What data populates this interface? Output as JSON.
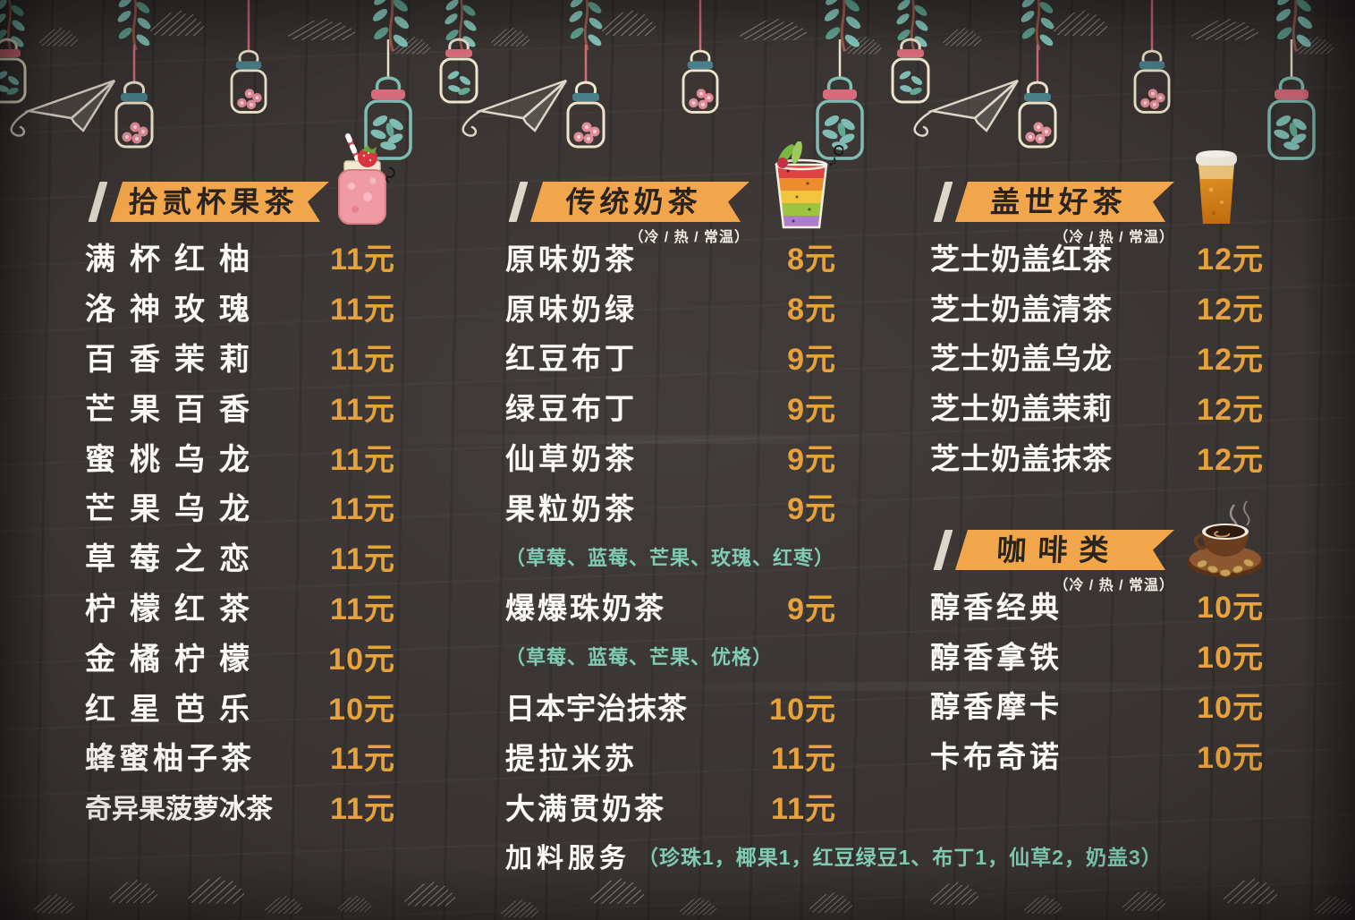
{
  "poster": {
    "kind": "milk-tea-shop-chalkboard-menu"
  },
  "colors": {
    "background": "#373230",
    "banner_orange": "#f2a64b",
    "banner_text": "#2a2420",
    "item_text": "#fbfaf6",
    "price_orange": "#e7a23b",
    "note_teal": "#80cbb3",
    "chalk_white": "#ddd6c9",
    "leaf_teal": "#86c9bd",
    "jar_band_teal": "#49808a",
    "string_pink": "#d76b7a",
    "cloud_gray": "#97928c"
  },
  "decor_icons": [
    "leaf-branch-icon",
    "hanging-jar-berries-icon",
    "hanging-jar-leaves-icon",
    "chalk-cloud-icon",
    "paper-airplane-icon",
    "strawberry-drink-icon",
    "rainbow-drink-icon",
    "milk-tea-cup-icon",
    "coffee-cup-icon"
  ],
  "sections": [
    {
      "id": "fruit-tea",
      "title": "拾贰杯果茶",
      "subtitle": "",
      "items": [
        {
          "name": "满杯红柚",
          "price": "11元"
        },
        {
          "name": "洛神玫瑰",
          "price": "11元"
        },
        {
          "name": "百香茉莉",
          "price": "11元"
        },
        {
          "name": "芒果百香",
          "price": "11元"
        },
        {
          "name": "蜜桃乌龙",
          "price": "11元"
        },
        {
          "name": "芒果乌龙",
          "price": "11元"
        },
        {
          "name": "草莓之恋",
          "price": "11元"
        },
        {
          "name": "柠檬红茶",
          "price": "11元"
        },
        {
          "name": "金橘柠檬",
          "price": "10元"
        },
        {
          "name": "红星芭乐",
          "price": "10元"
        },
        {
          "name": "蜂蜜柚子茶",
          "price": "11元"
        },
        {
          "name": "奇异果菠萝冰茶",
          "price": "11元"
        }
      ]
    },
    {
      "id": "milk-tea",
      "title": "传统奶茶",
      "subtitle": "（冷 / 热 / 常温）",
      "items": [
        {
          "name": "原味奶茶",
          "price": "8元"
        },
        {
          "name": "原味奶绿",
          "price": "8元"
        },
        {
          "name": "红豆布丁",
          "price": "9元"
        },
        {
          "name": "绿豆布丁",
          "price": "9元"
        },
        {
          "name": "仙草奶茶",
          "price": "9元"
        },
        {
          "name": "果粒奶茶",
          "price": "9元"
        },
        {
          "note": "（草莓、蓝莓、芒果、玫瑰、红枣）"
        },
        {
          "name": "爆爆珠奶茶",
          "price": "9元"
        },
        {
          "note": "（草莓、蓝莓、芒果、优格）"
        },
        {
          "name": "日本宇治抹茶",
          "price": "10元"
        },
        {
          "name": "提拉米苏",
          "price": "11元"
        },
        {
          "name": "大满贯奶茶",
          "price": "11元"
        },
        {
          "addon_label": "加料服务",
          "addon_note": "（珍珠1，椰果1，红豆绿豆1、布丁1，仙草2，奶盖3）"
        }
      ]
    },
    {
      "id": "cheese-tea",
      "title": "盖世好茶",
      "subtitle": "（冷 / 热 / 常温）",
      "items": [
        {
          "name": "芝士奶盖红茶",
          "price": "12元"
        },
        {
          "name": "芝士奶盖清茶",
          "price": "12元"
        },
        {
          "name": "芝士奶盖乌龙",
          "price": "12元"
        },
        {
          "name": "芝士奶盖茉莉",
          "price": "12元"
        },
        {
          "name": "芝士奶盖抹茶",
          "price": "12元"
        }
      ]
    },
    {
      "id": "coffee",
      "title": "咖啡类",
      "subtitle": "（冷 / 热 / 常温）",
      "items": [
        {
          "name": "醇香经典",
          "price": "10元"
        },
        {
          "name": "醇香拿铁",
          "price": "10元"
        },
        {
          "name": "醇香摩卡",
          "price": "10元"
        },
        {
          "name": "卡布奇诺",
          "price": "10元"
        }
      ]
    }
  ]
}
